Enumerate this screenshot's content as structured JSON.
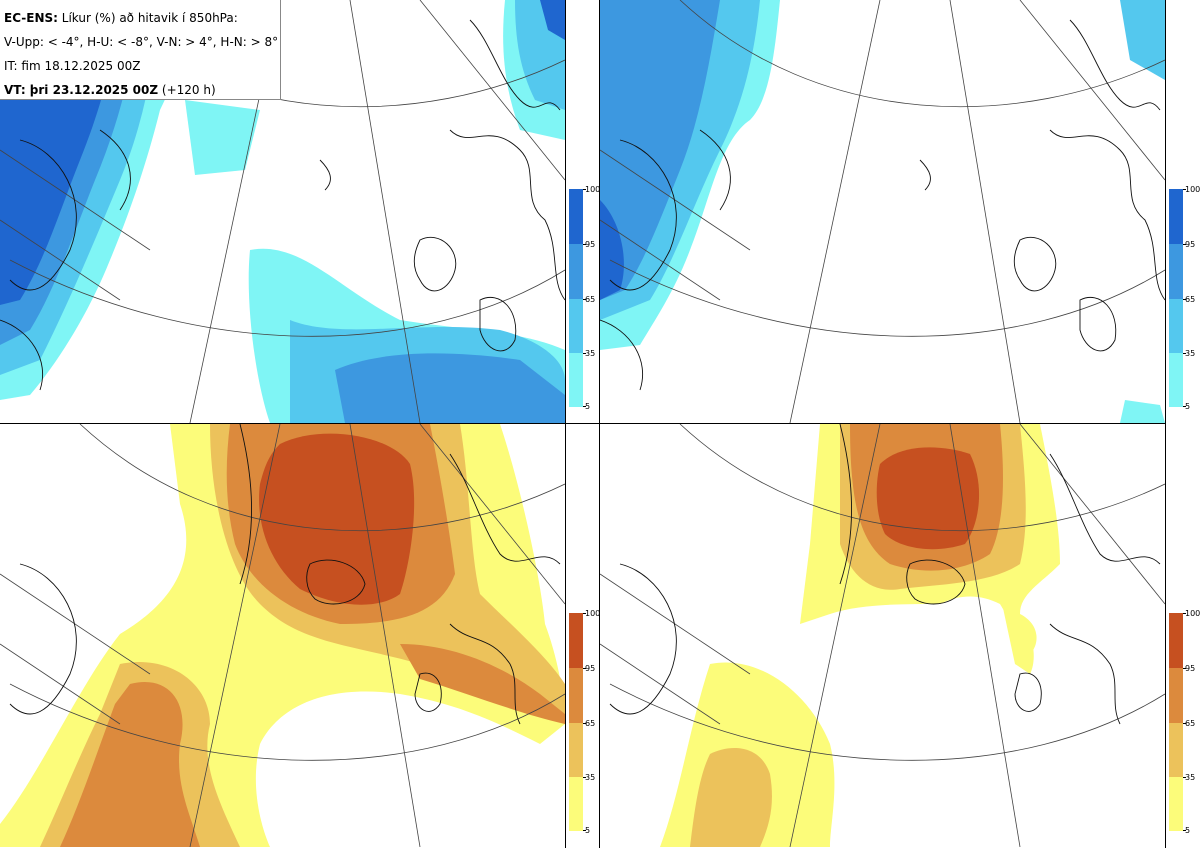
{
  "header": {
    "line1_bold": "EC-ENS:",
    "line1_rest": "Líkur (%) að hitavik í 850hPa:",
    "line2": "V-Upp: < -4°, H-U: < -8°, V-N: > 4°, H-N: > 8°",
    "line3": "IT: fim 18.12.2025 00Z",
    "line4_bold": "VT: þri 23.12.2025 00Z",
    "line4_rest": "(+120 h)"
  },
  "colorbar_ticks": [
    "100",
    "95",
    "65",
    "35",
    "5"
  ],
  "colors": {
    "cold_5": "#7ff5f5",
    "cold_35": "#54c8ee",
    "cold_65": "#3d98e0",
    "cold_95": "#1f66cf",
    "warm_5": "#fcfc7a",
    "warm_35": "#ecc25b",
    "warm_65": "#dc8a3d",
    "warm_95": "#c65020"
  }
}
